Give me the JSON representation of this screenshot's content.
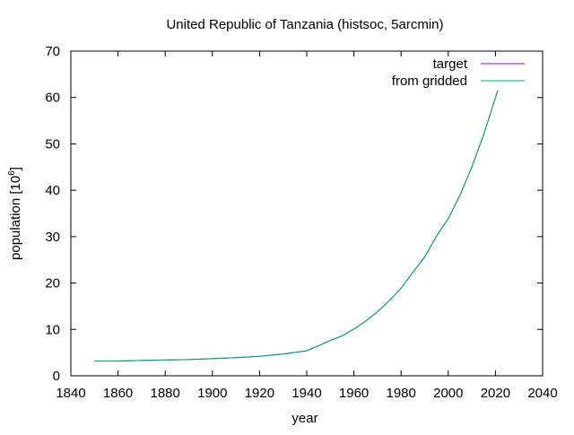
{
  "chart_data": {
    "type": "line",
    "title": "United Republic of Tanzania (histsoc, 5arcmin)",
    "xlabel": "year",
    "ylabel": "population [10^6]",
    "ylabel_base": "population [10",
    "ylabel_exp": "6",
    "ylabel_tail": "]",
    "xlim": [
      1840,
      2040
    ],
    "ylim": [
      0,
      70
    ],
    "x_ticks": [
      1840,
      1860,
      1880,
      1900,
      1920,
      1940,
      1960,
      1980,
      2000,
      2020,
      2040
    ],
    "y_ticks": [
      0,
      10,
      20,
      30,
      40,
      50,
      60,
      70
    ],
    "grid": false,
    "legend_position": "top-right",
    "series": [
      {
        "name": "target",
        "color": "#9400d3",
        "x": [
          1850,
          1860,
          1870,
          1880,
          1890,
          1900,
          1910,
          1920,
          1930,
          1940,
          1950,
          1955,
          1960,
          1965,
          1970,
          1975,
          1980,
          1985,
          1990,
          1995,
          2000,
          2005,
          2010,
          2015,
          2021
        ],
        "y": [
          3.2,
          3.2,
          3.3,
          3.4,
          3.5,
          3.7,
          3.9,
          4.2,
          4.7,
          5.4,
          7.6,
          8.6,
          10.1,
          11.8,
          13.8,
          16.2,
          18.9,
          22.3,
          25.6,
          30.1,
          33.9,
          39.0,
          45.0,
          52.0,
          61.5
        ]
      },
      {
        "name": "from gridded",
        "color": "#009e73",
        "x": [
          1850,
          1860,
          1870,
          1880,
          1890,
          1900,
          1910,
          1920,
          1930,
          1940,
          1950,
          1955,
          1960,
          1965,
          1970,
          1975,
          1980,
          1985,
          1990,
          1995,
          2000,
          2005,
          2010,
          2015,
          2021
        ],
        "y": [
          3.2,
          3.2,
          3.3,
          3.4,
          3.5,
          3.7,
          3.9,
          4.2,
          4.7,
          5.4,
          7.6,
          8.6,
          10.1,
          11.8,
          13.8,
          16.2,
          18.9,
          22.3,
          25.6,
          30.1,
          33.9,
          39.0,
          45.0,
          52.0,
          61.5
        ]
      }
    ]
  }
}
